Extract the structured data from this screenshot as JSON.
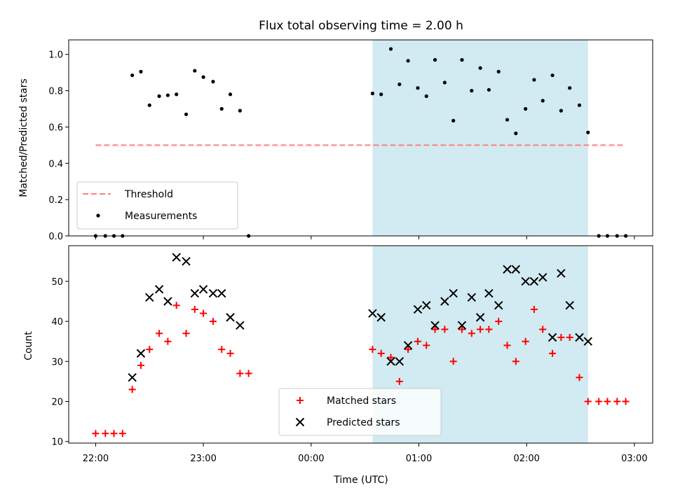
{
  "chart_data": {
    "title": "Flux total observing time = 2.00 h",
    "xlabel": "Time (UTC)",
    "x_tick_labels": [
      "22:00",
      "23:00",
      "00:00",
      "01:00",
      "02:00",
      "03:00"
    ],
    "x_tick_hours": [
      0,
      1,
      2,
      3,
      4,
      5
    ],
    "x_unit": "hours after 22:00 UTC",
    "xlim": [
      -0.25,
      5.17
    ],
    "shaded_span": {
      "start": 2.57,
      "end": 4.57,
      "color": "#add8e6"
    },
    "panels": [
      {
        "type": "scatter",
        "ylabel": "Matched/Predicted stars",
        "ylim": [
          0,
          1.08
        ],
        "y_ticks": [
          0.0,
          0.2,
          0.4,
          0.6,
          0.8,
          1.0
        ],
        "y_tick_labels": [
          "0.0",
          "0.2",
          "0.4",
          "0.6",
          "0.8",
          "1.0"
        ],
        "legend": {
          "placement": "lower left"
        },
        "series": [
          {
            "name": "Threshold",
            "style": "dashed-line",
            "color": "#ff7f7f",
            "x": [
              0.0,
              4.92
            ],
            "y": [
              0.5,
              0.5
            ]
          },
          {
            "name": "Measurements",
            "style": "dot",
            "color": "#000000",
            "x": [
              0.0,
              0.09,
              0.17,
              0.25,
              0.34,
              0.42,
              0.5,
              0.59,
              0.67,
              0.75,
              0.84,
              0.92,
              1.0,
              1.09,
              1.17,
              1.25,
              1.34,
              1.42,
              2.57,
              2.65,
              2.74,
              2.82,
              2.9,
              2.99,
              3.07,
              3.15,
              3.24,
              3.32,
              3.4,
              3.49,
              3.57,
              3.65,
              3.74,
              3.82,
              3.9,
              3.99,
              4.07,
              4.15,
              4.24,
              4.32,
              4.4,
              4.49,
              4.57,
              4.67,
              4.75,
              4.84,
              4.92
            ],
            "y": [
              0.0,
              0.0,
              0.0,
              0.0,
              0.885,
              0.905,
              0.72,
              0.77,
              0.775,
              0.78,
              0.67,
              0.91,
              0.875,
              0.85,
              0.7,
              0.78,
              0.69,
              0.0,
              0.785,
              0.78,
              1.03,
              0.835,
              0.965,
              0.815,
              0.77,
              0.97,
              0.845,
              0.635,
              0.97,
              0.8,
              0.925,
              0.805,
              0.905,
              0.64,
              0.565,
              0.7,
              0.86,
              0.745,
              0.885,
              0.69,
              0.815,
              0.72,
              0.57,
              0.0,
              0.0,
              0.0,
              0.0
            ]
          }
        ]
      },
      {
        "type": "scatter",
        "ylabel": "Count",
        "ylim": [
          9.6,
          58.9
        ],
        "y_ticks": [
          10,
          20,
          30,
          40,
          50
        ],
        "y_tick_labels": [
          "10",
          "20",
          "30",
          "40",
          "50"
        ],
        "legend": {
          "placement": "lower center"
        },
        "series": [
          {
            "name": "Matched stars",
            "marker": "plus",
            "color": "#ff0000",
            "x": [
              0.0,
              0.09,
              0.17,
              0.25,
              0.34,
              0.42,
              0.5,
              0.59,
              0.67,
              0.75,
              0.84,
              0.92,
              1.0,
              1.09,
              1.17,
              1.25,
              1.34,
              1.42,
              2.57,
              2.65,
              2.74,
              2.82,
              2.9,
              2.99,
              3.07,
              3.15,
              3.24,
              3.32,
              3.4,
              3.49,
              3.57,
              3.65,
              3.74,
              3.82,
              3.9,
              3.99,
              4.07,
              4.15,
              4.24,
              4.32,
              4.4,
              4.49,
              4.57,
              4.67,
              4.75,
              4.84,
              4.92
            ],
            "y": [
              12,
              12,
              12,
              12,
              23,
              29,
              33,
              37,
              35,
              44,
              37,
              43,
              42,
              40,
              33,
              32,
              27,
              27,
              33,
              32,
              31,
              25,
              33,
              35,
              34,
              38,
              38,
              30,
              38,
              37,
              38,
              38,
              40,
              34,
              30,
              35,
              43,
              38,
              32,
              36,
              36,
              26,
              20,
              20,
              20,
              20,
              20
            ]
          },
          {
            "name": "Predicted stars",
            "marker": "x",
            "color": "#000000",
            "x": [
              0.34,
              0.42,
              0.5,
              0.59,
              0.67,
              0.75,
              0.84,
              0.92,
              1.0,
              1.09,
              1.17,
              1.25,
              1.34,
              2.57,
              2.65,
              2.74,
              2.82,
              2.9,
              2.99,
              3.07,
              3.15,
              3.24,
              3.32,
              3.4,
              3.49,
              3.57,
              3.65,
              3.74,
              3.82,
              3.9,
              3.99,
              4.07,
              4.15,
              4.24,
              4.32,
              4.4,
              4.49,
              4.57
            ],
            "y": [
              26,
              32,
              46,
              48,
              45,
              56,
              55,
              47,
              48,
              47,
              47,
              41,
              39,
              42,
              41,
              30,
              30,
              34,
              43,
              44,
              39,
              45,
              47,
              39,
              46,
              41,
              47,
              44,
              53,
              53,
              50,
              50,
              51,
              36,
              52,
              44,
              36,
              35
            ]
          }
        ]
      }
    ]
  }
}
